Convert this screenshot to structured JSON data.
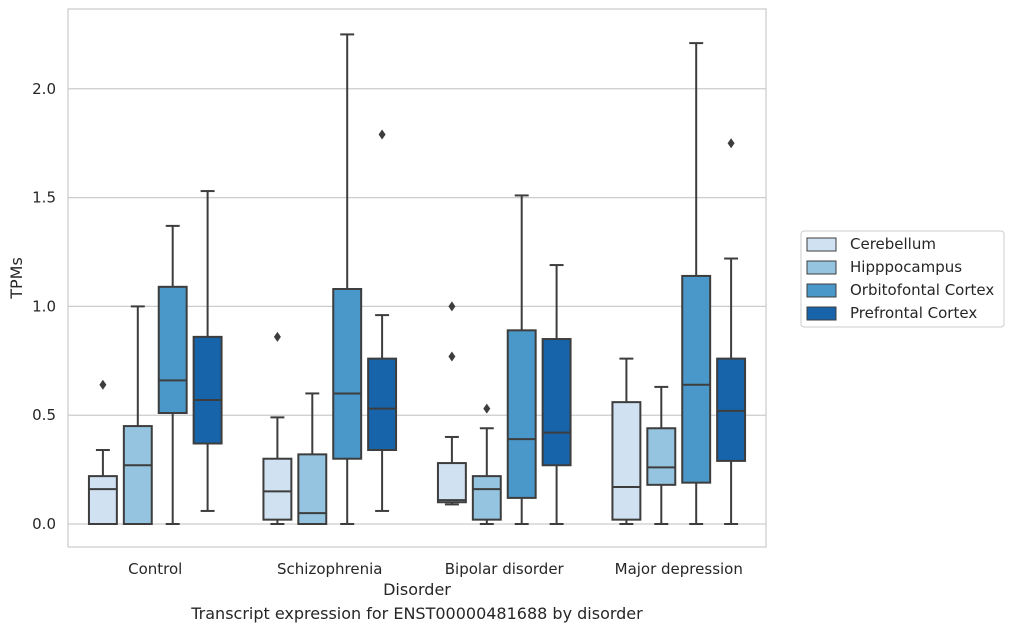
{
  "caption": "Transcript expression for ENST00000481688 by disorder",
  "chart_data": {
    "type": "box",
    "title": "",
    "xlabel": "Disorder",
    "ylabel": "TPMs",
    "ylim": [
      -0.11,
      2.36
    ],
    "yticks": [
      0.0,
      0.5,
      1.0,
      1.5,
      2.0
    ],
    "ytick_labels": [
      "0.0",
      "0.5",
      "1.0",
      "1.5",
      "2.0"
    ],
    "grid": "horizontal",
    "legend_position": "right",
    "categories": [
      "Control",
      "Schizophrenia",
      "Bipolar disorder",
      "Major depression"
    ],
    "series": [
      {
        "name": "Cerebellum",
        "color": "#d0e1f2",
        "boxes": [
          {
            "whislo": 0.0,
            "q1": 0.0,
            "med": 0.16,
            "q3": 0.22,
            "whishi": 0.34,
            "fliers": [
              0.64
            ]
          },
          {
            "whislo": 0.0,
            "q1": 0.02,
            "med": 0.15,
            "q3": 0.3,
            "whishi": 0.49,
            "fliers": [
              0.86
            ]
          },
          {
            "whislo": 0.09,
            "q1": 0.1,
            "med": 0.11,
            "q3": 0.28,
            "whishi": 0.4,
            "fliers": [
              0.77,
              1.0
            ]
          },
          {
            "whislo": 0.0,
            "q1": 0.02,
            "med": 0.17,
            "q3": 0.56,
            "whishi": 0.76,
            "fliers": []
          }
        ]
      },
      {
        "name": "Hipppocampus",
        "color": "#94c4df",
        "boxes": [
          {
            "whislo": 0.0,
            "q1": 0.0,
            "med": 0.27,
            "q3": 0.45,
            "whishi": 1.0,
            "fliers": []
          },
          {
            "whislo": 0.0,
            "q1": 0.0,
            "med": 0.05,
            "q3": 0.32,
            "whishi": 0.6,
            "fliers": []
          },
          {
            "whislo": 0.0,
            "q1": 0.02,
            "med": 0.16,
            "q3": 0.22,
            "whishi": 0.44,
            "fliers": [
              0.53
            ]
          },
          {
            "whislo": 0.0,
            "q1": 0.18,
            "med": 0.26,
            "q3": 0.44,
            "whishi": 0.63,
            "fliers": []
          }
        ]
      },
      {
        "name": "Orbitofontal Cortex",
        "color": "#4a98c9",
        "boxes": [
          {
            "whislo": 0.0,
            "q1": 0.51,
            "med": 0.66,
            "q3": 1.09,
            "whishi": 1.37,
            "fliers": []
          },
          {
            "whislo": 0.0,
            "q1": 0.3,
            "med": 0.6,
            "q3": 1.08,
            "whishi": 2.25,
            "fliers": []
          },
          {
            "whislo": 0.0,
            "q1": 0.12,
            "med": 0.39,
            "q3": 0.89,
            "whishi": 1.51,
            "fliers": []
          },
          {
            "whislo": 0.0,
            "q1": 0.19,
            "med": 0.64,
            "q3": 1.14,
            "whishi": 2.21,
            "fliers": []
          }
        ]
      },
      {
        "name": "Prefrontal Cortex",
        "color": "#1764ab",
        "boxes": [
          {
            "whislo": 0.06,
            "q1": 0.37,
            "med": 0.57,
            "q3": 0.86,
            "whishi": 1.53,
            "fliers": []
          },
          {
            "whislo": 0.06,
            "q1": 0.34,
            "med": 0.53,
            "q3": 0.76,
            "whishi": 0.96,
            "fliers": [
              1.79
            ]
          },
          {
            "whislo": 0.0,
            "q1": 0.27,
            "med": 0.42,
            "q3": 0.85,
            "whishi": 1.19,
            "fliers": []
          },
          {
            "whislo": 0.0,
            "q1": 0.29,
            "med": 0.52,
            "q3": 0.76,
            "whishi": 1.22,
            "fliers": [
              1.75
            ]
          }
        ]
      }
    ]
  }
}
